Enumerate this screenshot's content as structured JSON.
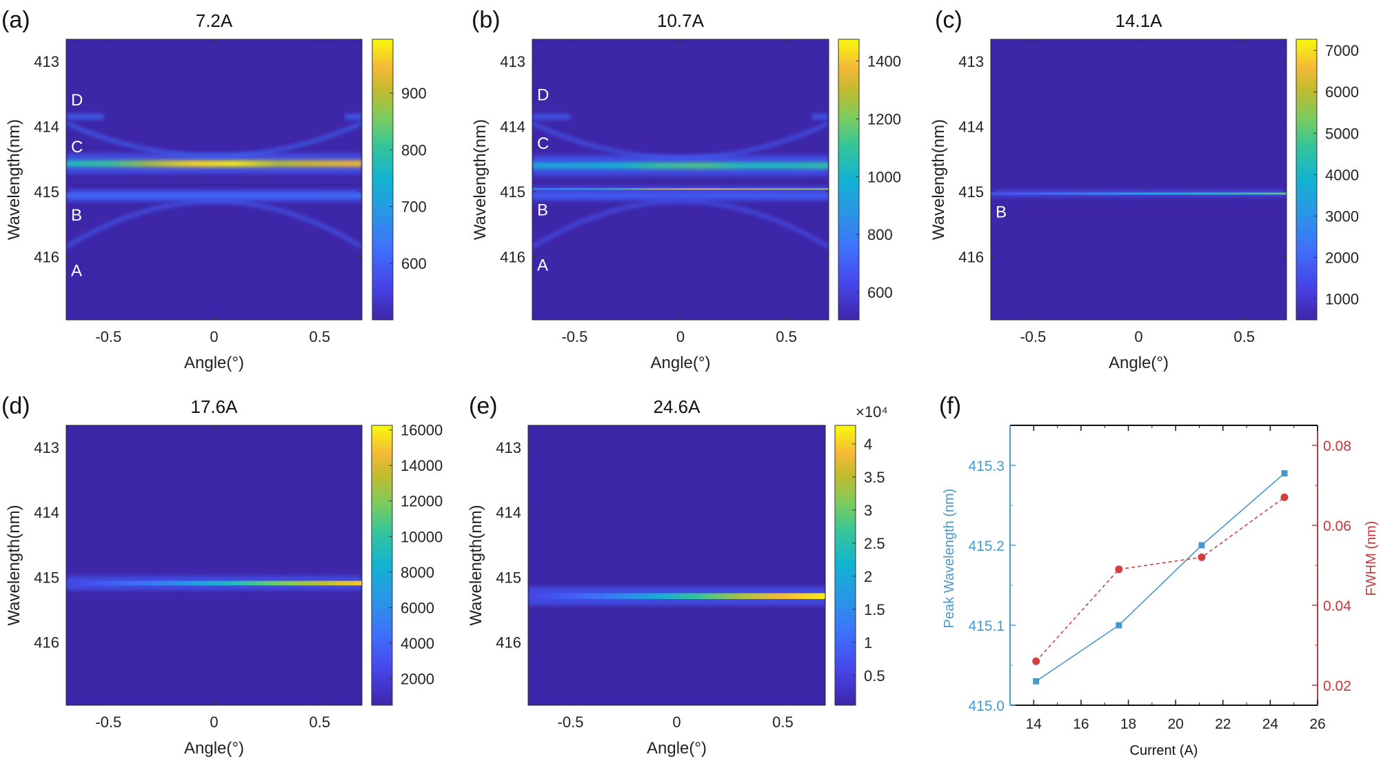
{
  "figure": {
    "colormap": "viridis",
    "background_color": "#3e26a8",
    "axis_color": "#262626"
  },
  "chart_data": [
    {
      "id": "a",
      "type": "heatmap",
      "panel_label": "(a)",
      "title": "7.2A",
      "xlabel": "Angle(°)",
      "ylabel": "Wavelength(nm)",
      "xlim": [
        -0.7,
        0.7
      ],
      "ylim": [
        412.66,
        416.97
      ],
      "y_reversed": true,
      "xticks": [
        -0.5,
        0,
        0.5
      ],
      "xtick_labels": [
        "-0.5",
        "0",
        "0.5"
      ],
      "yticks": [
        413,
        414,
        415,
        416
      ],
      "ytick_labels": [
        "413",
        "414",
        "415",
        "416"
      ],
      "colorbar": {
        "range": [
          500,
          995
        ],
        "ticks": [
          600,
          700,
          800,
          900
        ],
        "tick_labels": [
          "600",
          "700",
          "800",
          "900"
        ],
        "multiplier": ""
      },
      "mode_labels": [
        {
          "text": "D",
          "wavelength": 413.58
        },
        {
          "text": "C",
          "wavelength": 414.3
        },
        {
          "text": "B",
          "wavelength": 415.35
        },
        {
          "text": "A",
          "wavelength": 416.2
        }
      ],
      "features": [
        {
          "kind": "band",
          "wavelength": 414.57,
          "width_nm": 0.1,
          "intensity": [
            0.55,
            0.62,
            0.78,
            0.95,
            0.98,
            0.8,
            0.85,
            0.9
          ]
        },
        {
          "kind": "band",
          "wavelength": 415.06,
          "width_nm": 0.06,
          "intensity": [
            0.25,
            0.25,
            0.25,
            0.25,
            0.25,
            0.25,
            0.25,
            0.28
          ]
        },
        {
          "kind": "parabola",
          "center": 414.45,
          "edge": 413.95,
          "intensity": 0.18
        },
        {
          "kind": "parabola",
          "center": 415.15,
          "edge": 415.85,
          "intensity": 0.15
        },
        {
          "kind": "stub",
          "wavelength": 413.85,
          "intensity": 0.18
        }
      ]
    },
    {
      "id": "b",
      "type": "heatmap",
      "panel_label": "(b)",
      "title": "10.7A",
      "xlabel": "Angle(°)",
      "ylabel": "Wavelength(nm)",
      "xlim": [
        -0.7,
        0.7
      ],
      "ylim": [
        412.66,
        416.97
      ],
      "y_reversed": true,
      "xticks": [
        -0.5,
        0,
        0.5
      ],
      "xtick_labels": [
        "-0.5",
        "0",
        "0.5"
      ],
      "yticks": [
        413,
        414,
        415,
        416
      ],
      "ytick_labels": [
        "413",
        "414",
        "415",
        "416"
      ],
      "colorbar": {
        "range": [
          505,
          1475
        ],
        "ticks": [
          600,
          800,
          1000,
          1200,
          1400
        ],
        "tick_labels": [
          "600",
          "800",
          "1000",
          "1200",
          "1400"
        ],
        "multiplier": ""
      },
      "mode_labels": [
        {
          "text": "D",
          "wavelength": 413.5
        },
        {
          "text": "C",
          "wavelength": 414.25
        },
        {
          "text": "B",
          "wavelength": 415.27
        },
        {
          "text": "A",
          "wavelength": 416.12
        }
      ],
      "features": [
        {
          "kind": "band",
          "wavelength": 414.6,
          "width_nm": 0.1,
          "intensity": [
            0.45,
            0.45,
            0.5,
            0.62,
            0.65,
            0.55,
            0.55,
            0.6
          ]
        },
        {
          "kind": "line",
          "wavelength": 414.96,
          "width_nm": 0.025,
          "intensity": [
            0.35,
            0.45,
            0.6,
            0.85,
            0.9,
            0.85,
            0.8,
            0.78
          ]
        },
        {
          "kind": "band",
          "wavelength": 415.06,
          "width_nm": 0.05,
          "intensity": [
            0.2,
            0.2,
            0.2,
            0.2,
            0.2,
            0.2,
            0.2,
            0.2
          ]
        },
        {
          "kind": "parabola",
          "center": 414.48,
          "edge": 413.95,
          "intensity": 0.15
        },
        {
          "kind": "parabola",
          "center": 415.15,
          "edge": 415.85,
          "intensity": 0.13
        },
        {
          "kind": "stub",
          "wavelength": 413.85,
          "intensity": 0.15
        }
      ]
    },
    {
      "id": "c",
      "type": "heatmap",
      "panel_label": "(c)",
      "title": "14.1A",
      "xlabel": "Angle(°)",
      "ylabel": "Wavelength(nm)",
      "xlim": [
        -0.7,
        0.7
      ],
      "ylim": [
        412.66,
        416.97
      ],
      "y_reversed": true,
      "xticks": [
        -0.5,
        0,
        0.5
      ],
      "xtick_labels": [
        "-0.5",
        "0",
        "0.5"
      ],
      "yticks": [
        413,
        414,
        415,
        416
      ],
      "ytick_labels": [
        "413",
        "414",
        "415",
        "416"
      ],
      "colorbar": {
        "range": [
          490,
          7270
        ],
        "ticks": [
          1000,
          2000,
          3000,
          4000,
          5000,
          6000,
          7000
        ],
        "tick_labels": [
          "1000",
          "2000",
          "3000",
          "4000",
          "5000",
          "6000",
          "7000"
        ],
        "multiplier": ""
      },
      "mode_labels": [
        {
          "text": "B",
          "wavelength": 415.3
        }
      ],
      "features": [
        {
          "kind": "line",
          "wavelength": 415.03,
          "width_nm": 0.03,
          "intensity": [
            0.15,
            0.22,
            0.3,
            0.4,
            0.5,
            0.55,
            0.6,
            0.68
          ]
        }
      ]
    },
    {
      "id": "d",
      "type": "heatmap",
      "panel_label": "(d)",
      "title": "17.6A",
      "xlabel": "Angle(°)",
      "ylabel": "Wavelength(nm)",
      "xlim": [
        -0.7,
        0.7
      ],
      "ylim": [
        412.66,
        416.97
      ],
      "y_reversed": true,
      "xticks": [
        -0.5,
        0,
        0.5
      ],
      "xtick_labels": [
        "-0.5",
        "0",
        "0.5"
      ],
      "yticks": [
        413,
        414,
        415,
        416
      ],
      "ytick_labels": [
        "413",
        "414",
        "415",
        "416"
      ],
      "colorbar": {
        "range": [
          500,
          16260
        ],
        "ticks": [
          2000,
          4000,
          6000,
          8000,
          10000,
          12000,
          14000,
          16000
        ],
        "tick_labels": [
          "2000",
          "4000",
          "6000",
          "8000",
          "10000",
          "12000",
          "14000",
          "16000"
        ],
        "multiplier": ""
      },
      "mode_labels": [],
      "features": [
        {
          "kind": "line",
          "wavelength": 415.09,
          "width_nm": 0.07,
          "intensity": [
            0.12,
            0.2,
            0.28,
            0.4,
            0.55,
            0.7,
            0.8,
            0.92
          ]
        }
      ]
    },
    {
      "id": "e",
      "type": "heatmap",
      "panel_label": "(e)",
      "title": "24.6A",
      "xlabel": "Angle(°)",
      "ylabel": "Wavelength(nm)",
      "xlim": [
        -0.7,
        0.7
      ],
      "ylim": [
        412.66,
        416.97
      ],
      "y_reversed": true,
      "xticks": [
        -0.5,
        0,
        0.5
      ],
      "xtick_labels": [
        "-0.5",
        "0",
        "0.5"
      ],
      "yticks": [
        413,
        414,
        415,
        416
      ],
      "ytick_labels": [
        "413",
        "414",
        "415",
        "416"
      ],
      "colorbar": {
        "range": [
          0.05,
          4.28
        ],
        "ticks": [
          0.5,
          1,
          1.5,
          2,
          2.5,
          3,
          3.5,
          4
        ],
        "tick_labels": [
          "0.5",
          "1",
          "1.5",
          "2",
          "2.5",
          "3",
          "3.5",
          "4"
        ],
        "multiplier": "×10⁴"
      },
      "mode_labels": [],
      "features": [
        {
          "kind": "line",
          "wavelength": 415.29,
          "width_nm": 0.09,
          "intensity": [
            0.12,
            0.2,
            0.3,
            0.45,
            0.62,
            0.78,
            0.9,
            0.98
          ]
        }
      ]
    },
    {
      "id": "f",
      "type": "line",
      "panel_label": "(f)",
      "title": "",
      "xlabel": "Current (A)",
      "xlim": [
        13,
        26
      ],
      "xticks": [
        14,
        16,
        18,
        20,
        22,
        24,
        26
      ],
      "xtick_labels": [
        "14",
        "16",
        "18",
        "20",
        "22",
        "24",
        "26"
      ],
      "left_axis": {
        "label": "Peak Wavelength (nm)",
        "color": "#4a98c9",
        "ylim": [
          415.0,
          415.35
        ],
        "ticks": [
          415.0,
          415.1,
          415.2,
          415.3
        ],
        "tick_labels": [
          "415.0",
          "415.1",
          "415.2",
          "415.3"
        ]
      },
      "right_axis": {
        "label": "FWHM (nm)",
        "color": "#c0393b",
        "ylim": [
          0.015,
          0.085
        ],
        "ticks": [
          0.02,
          0.04,
          0.06,
          0.08
        ],
        "tick_labels": [
          "0.02",
          "0.04",
          "0.06",
          "0.08"
        ]
      },
      "series": [
        {
          "name": "Peak Wavelength",
          "axis": "left",
          "marker": "square",
          "line": "solid",
          "color": "#4a98c9",
          "x": [
            14.1,
            17.6,
            21.1,
            24.6
          ],
          "y": [
            415.03,
            415.1,
            415.2,
            415.29
          ]
        },
        {
          "name": "FWHM",
          "axis": "right",
          "marker": "circle",
          "line": "dashed",
          "color": "#d04040",
          "x": [
            14.1,
            17.6,
            21.1,
            24.6
          ],
          "y": [
            0.026,
            0.049,
            0.052,
            0.067
          ]
        }
      ],
      "grid": false,
      "legend": "none"
    }
  ]
}
